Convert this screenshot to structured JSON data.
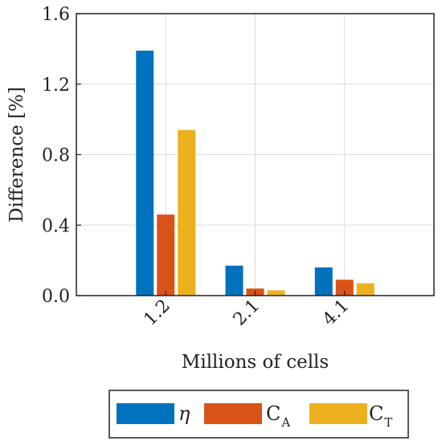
{
  "chart_data": {
    "type": "bar",
    "xlabel": "Millions of cells",
    "ylabel": "Difference [%]",
    "categories": [
      "1.2",
      "2.1",
      "4.1"
    ],
    "ylim": [
      0,
      1.6
    ],
    "yticks": [
      "0.0",
      "0.4",
      "0.8",
      "1.2",
      "1.6"
    ],
    "grid": true,
    "legend_position": "bottom",
    "series": [
      {
        "name": "η",
        "sub": "",
        "color": "#0072BD",
        "values": [
          1.39,
          0.17,
          0.16
        ]
      },
      {
        "name": "C",
        "sub": "A",
        "color": "#D95319",
        "values": [
          0.46,
          0.04,
          0.09
        ]
      },
      {
        "name": "C",
        "sub": "T",
        "color": "#EDB120",
        "values": [
          0.94,
          0.03,
          0.07
        ]
      }
    ]
  }
}
